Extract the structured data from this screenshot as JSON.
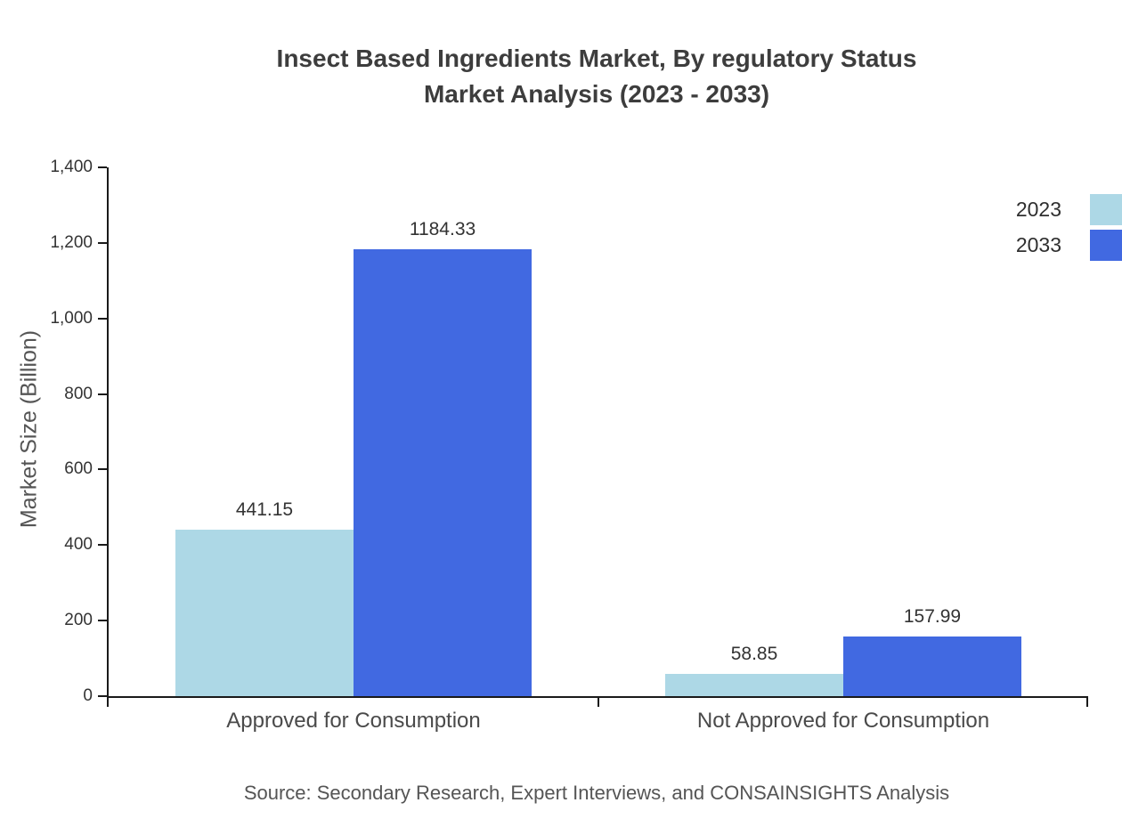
{
  "title": {
    "line1": "Insect Based Ingredients Market, By regulatory Status",
    "line2": "Market Analysis (2023 - 2033)"
  },
  "source": "Source: Secondary Research, Expert Interviews, and CONSAINSIGHTS Analysis",
  "legend": {
    "items": [
      {
        "label": "2023",
        "color": "#ADD8E6"
      },
      {
        "label": "2033",
        "color": "#4169E1"
      }
    ]
  },
  "chart_data": {
    "type": "bar",
    "title": "Insect Based Ingredients Market, By regulatory Status Market Analysis (2023 - 2033)",
    "ylabel": "Market Size (Billion)",
    "categories": [
      "Approved for Consumption",
      "Not Approved for Consumption"
    ],
    "series": [
      {
        "name": "2023",
        "color": "#ADD8E6",
        "values": [
          441.15,
          58.85
        ]
      },
      {
        "name": "2033",
        "color": "#4169E1",
        "values": [
          1184.33,
          157.99
        ]
      }
    ],
    "ylim": [
      0,
      1400
    ],
    "yticks": [
      0,
      200,
      400,
      600,
      800,
      1000,
      1200,
      1400
    ],
    "ytick_labels": [
      "0",
      "200",
      "400",
      "600",
      "800",
      "1,000",
      "1,200",
      "1,400"
    ],
    "grid": false,
    "legend_position": "top-right"
  }
}
